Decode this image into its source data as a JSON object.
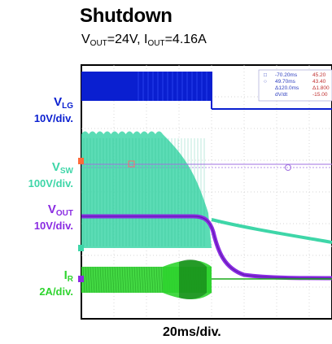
{
  "title": "Shutdown",
  "subtitle": {
    "vout_sym": "V",
    "vout_sub": "OUT",
    "vout_val": "=24V, ",
    "iout_sym": "I",
    "iout_sub": "OUT",
    "iout_val": "=4.16A"
  },
  "channels": [
    {
      "sym": "V",
      "sub": "LG",
      "scale": "10V/div.",
      "color": "#0a1fd0"
    },
    {
      "sym": "V",
      "sub": "SW",
      "scale": "100V/div.",
      "color": "#3ed6a8"
    },
    {
      "sym": "V",
      "sub": "OUT",
      "scale": "10V/div.",
      "color": "#8a2be2"
    },
    {
      "sym": "I",
      "sub": "R",
      "scale": "2A/div.",
      "color": "#2fd42f"
    }
  ],
  "xlabel": "20ms/div.",
  "cursor_readout": [
    {
      "symbol": "□",
      "value": "-70.20ms",
      "extra": "45.20"
    },
    {
      "symbol": "○",
      "value": "49.70ms",
      "extra": "43.40"
    },
    {
      "symbol": "",
      "value": "Δ120.0ms",
      "extra": "Δ1.800"
    },
    {
      "symbol": "",
      "value": "dV/dt",
      "extra": "-15.00"
    }
  ],
  "chart_data": {
    "type": "line",
    "title": "Shutdown",
    "subtitle": "VOUT=24V, IOUT=4.16A",
    "xlabel": "20ms/div.",
    "grid": true,
    "shutdown_time_div": 4.0,
    "series": [
      {
        "name": "VLG",
        "scale": "10V/div.",
        "x": [
          0.0,
          1.0,
          2.0,
          3.0,
          3.9,
          4.0,
          4.1,
          5.0,
          6.0,
          7.0,
          8.0,
          10.0
        ],
        "values": [
          1.1,
          1.1,
          1.1,
          1.1,
          1.1,
          1.1,
          0.0,
          0.0,
          0.0,
          0.0,
          0.0,
          0.0
        ]
      },
      {
        "name": "VSW",
        "scale": "100V/div.",
        "x": [
          0.0,
          1.0,
          2.0,
          2.5,
          3.0,
          3.5,
          4.0,
          5.0,
          6.0,
          7.0,
          8.0,
          10.0
        ],
        "values": [
          2.3,
          2.35,
          2.35,
          2.3,
          1.9,
          1.2,
          0.25,
          0.0,
          0.0,
          0.0,
          0.0,
          0.0
        ]
      },
      {
        "name": "VOUT",
        "scale": "10V/div.",
        "x": [
          0.0,
          1.0,
          2.0,
          3.0,
          3.5,
          4.0,
          4.2,
          5.0,
          6.0,
          7.0,
          8.0,
          10.0
        ],
        "values": [
          2.4,
          2.4,
          2.4,
          2.4,
          2.38,
          2.2,
          1.6,
          0.7,
          0.3,
          0.1,
          0.05,
          0.05
        ]
      },
      {
        "name": "IR",
        "scale": "2A/div.",
        "x": [
          0.0,
          1.0,
          2.0,
          3.0,
          3.5,
          4.0,
          4.2,
          5.0,
          6.0,
          7.0,
          8.0,
          10.0
        ],
        "values": [
          0.0,
          0.0,
          0.0,
          0.0,
          0.0,
          0.0,
          0.0,
          0.0,
          0.0,
          0.0,
          0.0,
          0.0
        ]
      }
    ]
  }
}
